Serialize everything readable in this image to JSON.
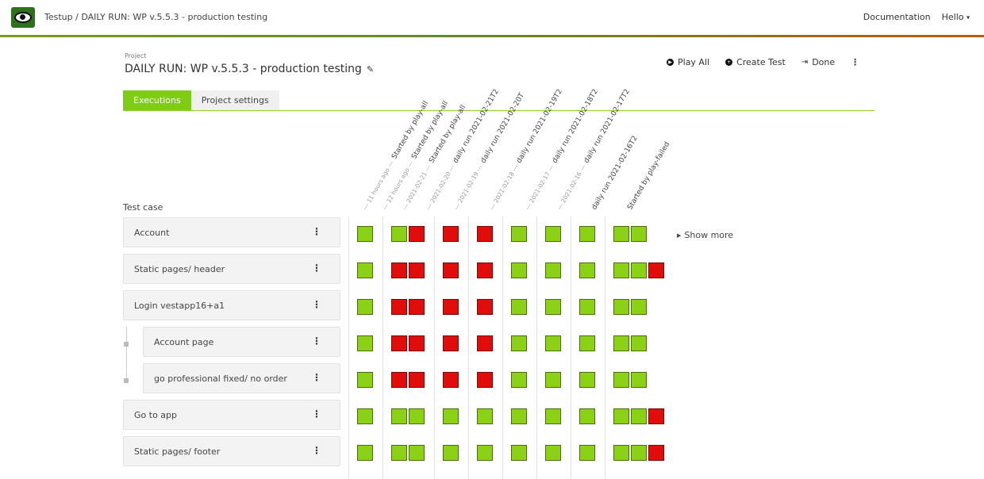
{
  "app": {
    "breadcrumb": "Testup / DAILY RUN: WP v.5.5.3 - production testing",
    "nav_documentation": "Documentation",
    "nav_hello": "Hello",
    "nav_hello_caret": "▾"
  },
  "project": {
    "label": "Project",
    "title": "DAILY RUN: WP v.5.5.3 - production testing",
    "edit_icon": "✎"
  },
  "actions": {
    "play_all": "Play All",
    "create_test": "Create Test",
    "done": "Done",
    "more": "⋮"
  },
  "tabs": {
    "executions": "Executions",
    "project_settings": "Project settings"
  },
  "table": {
    "test_case_header": "Test case",
    "show_more": "Show more",
    "columns": [
      {
        "sub": "--- 11 hours ago ---",
        "title": "Started by play-all"
      },
      {
        "sub": "--- 12 hours ago ---",
        "title": "Started by play-all"
      },
      {
        "sub": "--- 2021-02-21 ---",
        "title": "Started by play-all"
      },
      {
        "sub": "--- 2021-02-20 ---",
        "title": "daily run 2021-02-21T2"
      },
      {
        "sub": "--- 2021-02-19 ---",
        "title": "daily run 2021-02-20T"
      },
      {
        "sub": "--- 2021-02-18 ---",
        "title": "daily run 2021-02-19T2"
      },
      {
        "sub": "--- 2021-02-17 ---",
        "title": "daily run 2021-02-18T2"
      },
      {
        "sub": "--- 2021-02-16 ---",
        "title": "daily run 2021-02-17T2"
      },
      {
        "sub": "",
        "title": "daily run 2021-02-16T2"
      },
      {
        "sub": "",
        "title": "Started by play-failed"
      }
    ],
    "rows": [
      {
        "name": "Account",
        "indent": false,
        "groups": [
          [
            "pass"
          ],
          [
            "pass",
            "fail"
          ],
          [
            "fail"
          ],
          [
            "fail"
          ],
          [
            "pass"
          ],
          [
            "pass"
          ],
          [
            "pass"
          ],
          [
            "pass",
            "pass"
          ]
        ]
      },
      {
        "name": "Static pages/ header",
        "indent": false,
        "groups": [
          [
            "pass"
          ],
          [
            "fail",
            "fail"
          ],
          [
            "fail"
          ],
          [
            "fail"
          ],
          [
            "pass"
          ],
          [
            "pass"
          ],
          [
            "pass"
          ],
          [
            "pass",
            "pass",
            "fail"
          ]
        ]
      },
      {
        "name": "Login vestapp16+a1",
        "indent": false,
        "groups": [
          [
            "pass"
          ],
          [
            "fail",
            "fail"
          ],
          [
            "fail"
          ],
          [
            "fail"
          ],
          [
            "pass"
          ],
          [
            "pass"
          ],
          [
            "pass"
          ],
          [
            "pass",
            "pass"
          ]
        ]
      },
      {
        "name": "Account page",
        "indent": true,
        "groups": [
          [
            "pass"
          ],
          [
            "fail",
            "fail"
          ],
          [
            "fail"
          ],
          [
            "fail"
          ],
          [
            "pass"
          ],
          [
            "pass"
          ],
          [
            "pass"
          ],
          [
            "pass",
            "pass"
          ]
        ]
      },
      {
        "name": "go professional fixed/ no order",
        "indent": true,
        "groups": [
          [
            "pass"
          ],
          [
            "fail",
            "fail"
          ],
          [
            "fail"
          ],
          [
            "fail"
          ],
          [
            "pass"
          ],
          [
            "pass"
          ],
          [
            "pass"
          ],
          [
            "pass",
            "pass"
          ]
        ]
      },
      {
        "name": "Go to app",
        "indent": false,
        "groups": [
          [
            "pass"
          ],
          [
            "pass",
            "pass"
          ],
          [
            "pass"
          ],
          [
            "pass"
          ],
          [
            "pass"
          ],
          [
            "pass"
          ],
          [
            "pass"
          ],
          [
            "pass",
            "pass",
            "fail"
          ]
        ]
      },
      {
        "name": "Static pages/ footer",
        "indent": false,
        "groups": [
          [
            "pass"
          ],
          [
            "pass",
            "pass"
          ],
          [
            "pass"
          ],
          [
            "pass"
          ],
          [
            "pass"
          ],
          [
            "pass"
          ],
          [
            "pass"
          ],
          [
            "pass",
            "pass",
            "fail"
          ]
        ]
      }
    ]
  }
}
